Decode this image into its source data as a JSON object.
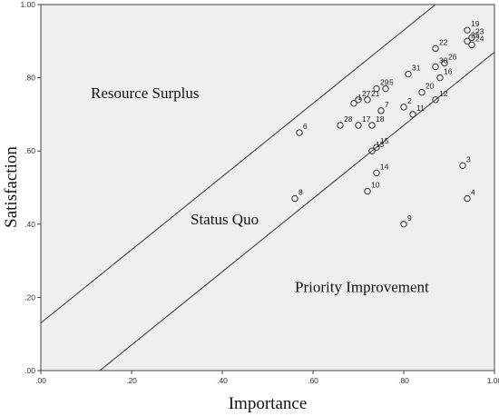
{
  "chart_data": {
    "type": "scatter",
    "title": "",
    "xlabel": "Importance",
    "ylabel": "Satisfaction",
    "xlim": [
      0,
      1
    ],
    "ylim": [
      0,
      1
    ],
    "x_ticks": [
      ".00",
      ".20",
      ".40",
      ".60",
      ".80",
      "1.00"
    ],
    "y_ticks": [
      ".00",
      ".20",
      ".40",
      ".60",
      ".80",
      "1.00"
    ],
    "grid": false,
    "background": "#efefef",
    "marker_color": "#333333",
    "points": [
      {
        "label": "1",
        "x": 0.69,
        "y": 0.73
      },
      {
        "label": "2",
        "x": 0.8,
        "y": 0.72
      },
      {
        "label": "3",
        "x": 0.93,
        "y": 0.56
      },
      {
        "label": "4",
        "x": 0.94,
        "y": 0.47
      },
      {
        "label": "5",
        "x": 0.76,
        "y": 0.77
      },
      {
        "label": "6",
        "x": 0.57,
        "y": 0.65
      },
      {
        "label": "7",
        "x": 0.75,
        "y": 0.71
      },
      {
        "label": "8",
        "x": 0.56,
        "y": 0.47
      },
      {
        "label": "9",
        "x": 0.8,
        "y": 0.4
      },
      {
        "label": "10",
        "x": 0.72,
        "y": 0.49
      },
      {
        "label": "11",
        "x": 0.82,
        "y": 0.7
      },
      {
        "label": "12",
        "x": 0.87,
        "y": 0.74
      },
      {
        "label": "13",
        "x": 0.73,
        "y": 0.6
      },
      {
        "label": "14",
        "x": 0.74,
        "y": 0.54
      },
      {
        "label": "15",
        "x": 0.74,
        "y": 0.61
      },
      {
        "label": "16",
        "x": 0.88,
        "y": 0.8
      },
      {
        "label": "17",
        "x": 0.7,
        "y": 0.67
      },
      {
        "label": "18",
        "x": 0.73,
        "y": 0.67
      },
      {
        "label": "19",
        "x": 0.94,
        "y": 0.93
      },
      {
        "label": "20",
        "x": 0.84,
        "y": 0.76
      },
      {
        "label": "21",
        "x": 0.72,
        "y": 0.74
      },
      {
        "label": "22",
        "x": 0.87,
        "y": 0.88
      },
      {
        "label": "23",
        "x": 0.95,
        "y": 0.91
      },
      {
        "label": "24",
        "x": 0.95,
        "y": 0.89
      },
      {
        "label": "25",
        "x": 0.94,
        "y": 0.9
      },
      {
        "label": "26",
        "x": 0.89,
        "y": 0.84
      },
      {
        "label": "27",
        "x": 0.7,
        "y": 0.74
      },
      {
        "label": "28",
        "x": 0.66,
        "y": 0.67
      },
      {
        "label": "29",
        "x": 0.74,
        "y": 0.77
      },
      {
        "label": "30",
        "x": 0.87,
        "y": 0.83
      },
      {
        "label": "31",
        "x": 0.81,
        "y": 0.81
      }
    ],
    "reference_lines": [
      {
        "slope": 1,
        "intercept": 0.13
      },
      {
        "slope": 1,
        "intercept": -0.13
      }
    ],
    "regions": [
      {
        "text": "Resource Surplus",
        "x": 0.11,
        "y": 0.745
      },
      {
        "text": "Status Quo",
        "x": 0.33,
        "y": 0.4
      },
      {
        "text": "Priority Improvement",
        "x": 0.56,
        "y": 0.215
      }
    ]
  }
}
